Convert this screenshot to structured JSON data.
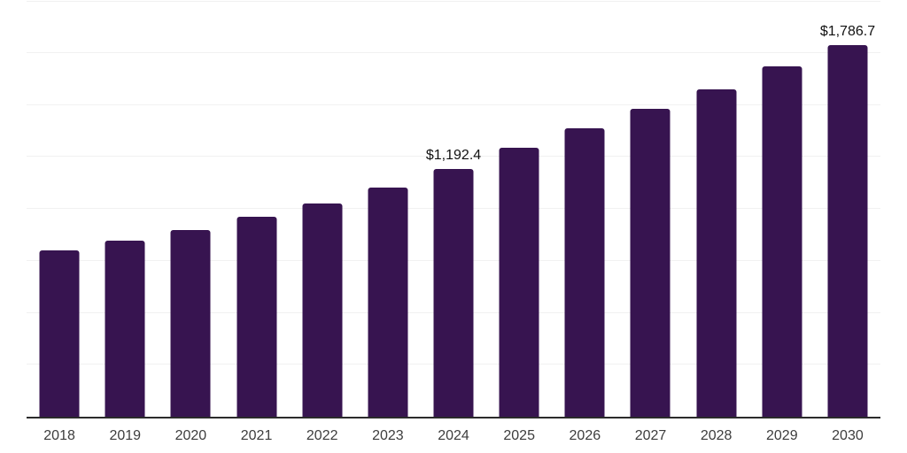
{
  "chart_data": {
    "type": "bar",
    "title": "",
    "xlabel": "",
    "ylabel": "",
    "categories": [
      "2018",
      "2019",
      "2020",
      "2021",
      "2022",
      "2023",
      "2024",
      "2025",
      "2026",
      "2027",
      "2028",
      "2029",
      "2030"
    ],
    "values": [
      800,
      845,
      900,
      960,
      1027,
      1104,
      1192.4,
      1295,
      1387,
      1480,
      1574,
      1684,
      1786.7
    ],
    "value_labels": [
      "",
      "",
      "",
      "",
      "",
      "",
      "$1,192.4",
      "",
      "",
      "",
      "",
      "",
      "$1,786.7"
    ],
    "ylim": [
      0,
      2000
    ],
    "gridline_step": 250,
    "grid": "horizontal",
    "y_tick_labels_shown": false,
    "legend_position": "none",
    "colors": {
      "bar": "#371450",
      "axis_line": "#2b2b2b",
      "gridline": "#f1f1f1",
      "tick_label": "#3d3d3d",
      "data_label": "#111111",
      "background": "#ffffff"
    }
  }
}
